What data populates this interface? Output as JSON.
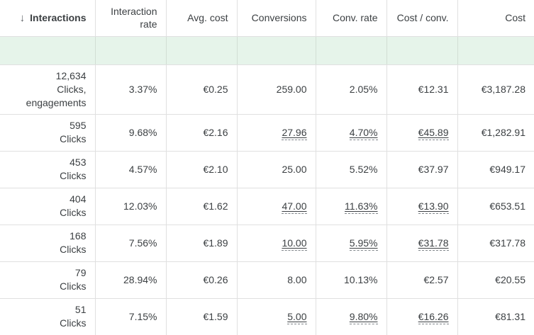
{
  "colors": {
    "summary_row_bg": "#e6f4ea",
    "border": "#e0e0e0",
    "text": "#3c4043",
    "muted_gray": "#5f6368",
    "dashed_underline": "#80868b"
  },
  "columns": [
    {
      "key": "interactions",
      "label": "Interactions",
      "sorted": true,
      "sort_icon": "↓"
    },
    {
      "key": "interaction-rate",
      "label": "Interaction rate",
      "sorted": false
    },
    {
      "key": "avg-cost",
      "label": "Avg. cost",
      "sorted": false
    },
    {
      "key": "conversions",
      "label": "Conversions",
      "sorted": false
    },
    {
      "key": "conv-rate",
      "label": "Conv. rate",
      "sorted": false
    },
    {
      "key": "cost-per-conv",
      "label": "Cost / conv.",
      "sorted": false
    },
    {
      "key": "cost",
      "label": "Cost",
      "sorted": false
    }
  ],
  "summary_row": {
    "cells": [
      "",
      "",
      "",
      "",
      "",
      "",
      ""
    ]
  },
  "rows": [
    {
      "cells": [
        {
          "text": "12,634",
          "sub": "Clicks, engagements"
        },
        {
          "text": "3.37%"
        },
        {
          "text": "€0.25"
        },
        {
          "text": "259.00"
        },
        {
          "text": "2.05%"
        },
        {
          "text": "€12.31"
        },
        {
          "text": "€3,187.28"
        }
      ]
    },
    {
      "cells": [
        {
          "text": "595",
          "sub": "Clicks"
        },
        {
          "text": "9.68%"
        },
        {
          "text": "€2.16"
        },
        {
          "text": "27.96",
          "dashed": true
        },
        {
          "text": "4.70%",
          "dashed": true
        },
        {
          "text": "€45.89",
          "dashed": true
        },
        {
          "text": "€1,282.91"
        }
      ]
    },
    {
      "cells": [
        {
          "text": "453",
          "sub": "Clicks"
        },
        {
          "text": "4.57%"
        },
        {
          "text": "€2.10"
        },
        {
          "text": "25.00"
        },
        {
          "text": "5.52%"
        },
        {
          "text": "€37.97"
        },
        {
          "text": "€949.17"
        }
      ]
    },
    {
      "cells": [
        {
          "text": "404",
          "sub": "Clicks"
        },
        {
          "text": "12.03%"
        },
        {
          "text": "€1.62"
        },
        {
          "text": "47.00",
          "dashed": true
        },
        {
          "text": "11.63%",
          "dashed": true
        },
        {
          "text": "€13.90",
          "dashed": true
        },
        {
          "text": "€653.51"
        }
      ]
    },
    {
      "cells": [
        {
          "text": "168",
          "sub": "Clicks"
        },
        {
          "text": "7.56%"
        },
        {
          "text": "€1.89"
        },
        {
          "text": "10.00",
          "dashed": true
        },
        {
          "text": "5.95%",
          "dashed": true
        },
        {
          "text": "€31.78",
          "dashed": true
        },
        {
          "text": "€317.78"
        }
      ]
    },
    {
      "cells": [
        {
          "text": "79",
          "sub": "Clicks"
        },
        {
          "text": "28.94%"
        },
        {
          "text": "€0.26"
        },
        {
          "text": "8.00"
        },
        {
          "text": "10.13%"
        },
        {
          "text": "€2.57"
        },
        {
          "text": "€20.55"
        }
      ]
    },
    {
      "cells": [
        {
          "text": "51",
          "sub": "Clicks"
        },
        {
          "text": "7.15%"
        },
        {
          "text": "€1.59"
        },
        {
          "text": "5.00",
          "dashed": true
        },
        {
          "text": "9.80%",
          "dashed": true
        },
        {
          "text": "€16.26",
          "dashed": true
        },
        {
          "text": "€81.31"
        }
      ]
    }
  ]
}
